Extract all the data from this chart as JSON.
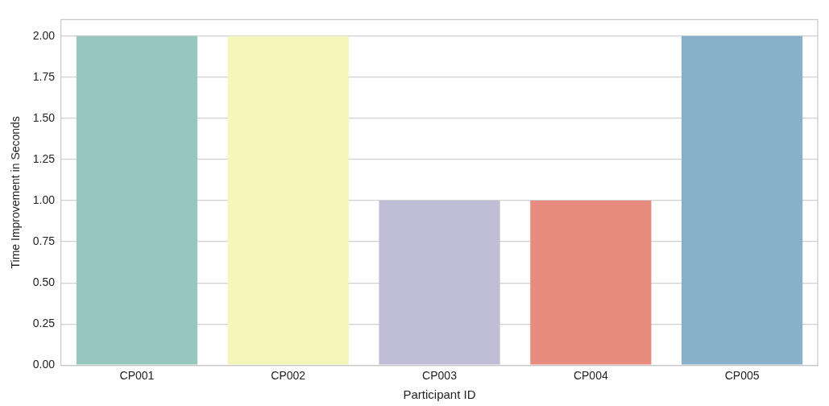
{
  "chart_data": {
    "type": "bar",
    "xlabel": "Participant ID",
    "ylabel": "Time Improvement in Seconds",
    "categories": [
      "CP001",
      "CP002",
      "CP003",
      "CP004",
      "CP005"
    ],
    "values": [
      2,
      2,
      1,
      1,
      2
    ],
    "colors": [
      "#98c7bf",
      "#f6f5bb",
      "#c0bdd6",
      "#e98c80",
      "#89b0cb"
    ],
    "ylim": [
      0,
      2.1
    ],
    "yticks": [
      {
        "value": 0,
        "label": "0.00"
      },
      {
        "value": 0.25,
        "label": "0.25"
      },
      {
        "value": 0.5,
        "label": "0.50"
      },
      {
        "value": 0.75,
        "label": "0.75"
      },
      {
        "value": 1,
        "label": "1.00"
      },
      {
        "value": 1.25,
        "label": "1.25"
      },
      {
        "value": 1.5,
        "label": "1.50"
      },
      {
        "value": 1.75,
        "label": "1.75"
      },
      {
        "value": 2,
        "label": "2.00"
      }
    ],
    "grid": "y",
    "legend": false
  }
}
